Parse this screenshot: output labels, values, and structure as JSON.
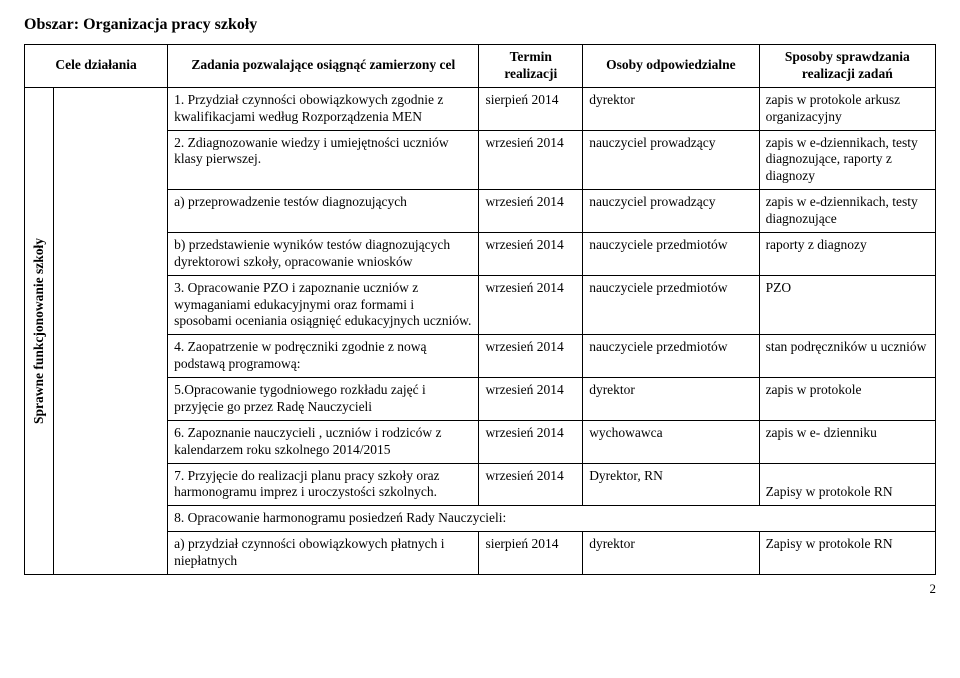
{
  "area_title": "Obszar: Organizacja pracy szkoły",
  "headers": {
    "cele": "Cele działania",
    "task": "Zadania pozwalające osiągnąć zamierzony cel",
    "term": "Termin realizacji",
    "resp": "Osoby odpowiedzialne",
    "check": "Sposoby sprawdzania realizacji zadań"
  },
  "side_label": "Sprawne funkcjonowanie szkoły",
  "rows": [
    {
      "task": "1. Przydział czynności obowiązkowych zgodnie z kwalifikacjami według Rozporządzenia MEN",
      "term": "sierpień 2014",
      "resp": "dyrektor",
      "check": "zapis w protokole arkusz organizacyjny"
    },
    {
      "task": " 2. Zdiagnozowanie wiedzy i umiejętności uczniów klasy pierwszej.",
      "term": "wrzesień 2014",
      "resp": "nauczyciel prowadzący",
      "check": "zapis w e-dziennikach, testy diagnozujące, raporty z diagnozy"
    },
    {
      "task": "a) przeprowadzenie testów diagnozujących",
      "term": "wrzesień 2014",
      "resp": "nauczyciel prowadzący",
      "check": "zapis w e-dziennikach, testy diagnozujące"
    },
    {
      "task": "b) przedstawienie wyników testów diagnozujących dyrektorowi szkoły, opracowanie wniosków",
      "term": "wrzesień 2014",
      "resp": "nauczyciele przedmiotów",
      "check": "raporty z diagnozy"
    },
    {
      "task": "3. Opracowanie PZO i zapoznanie uczniów z wymaganiami edukacyjnymi oraz formami i sposobami oceniania osiągnięć edukacyjnych uczniów.",
      "term": "wrzesień 2014",
      "resp": "nauczyciele przedmiotów",
      "check": "PZO"
    },
    {
      "task": "4. Zaopatrzenie w podręczniki zgodnie z nową podstawą programową:",
      "term": "wrzesień 2014",
      "resp": "nauczyciele przedmiotów",
      "check": "stan podręczników u uczniów"
    },
    {
      "task": "5.Opracowanie tygodniowego rozkładu zajęć i przyjęcie go przez Radę Nauczycieli",
      "term": "wrzesień 2014",
      "resp": "dyrektor",
      "check": "zapis w protokole"
    },
    {
      "task": "6. Zapoznanie nauczycieli , uczniów i rodziców z kalendarzem roku szkolnego 2014/2015",
      "term": "wrzesień 2014",
      "resp": "wychowawca",
      "check": "zapis w e- dzienniku"
    },
    {
      "task": "7. Przyjęcie do realizacji planu pracy szkoły oraz harmonogramu imprez i uroczystości szkolnych.",
      "term": "wrzesień 2014",
      "resp": "Dyrektor, RN",
      "check": "\nZapisy w protokole RN"
    }
  ],
  "row8_span": "8. Opracowanie harmonogramu posiedzeń Rady Nauczycieli:",
  "row_a": {
    "task": "a)  przydział czynności obowiązkowych płatnych i niepłatnych",
    "term": "sierpień 2014",
    "resp": "dyrektor",
    "check": "Zapisy w protokole RN"
  },
  "page_number": "2"
}
